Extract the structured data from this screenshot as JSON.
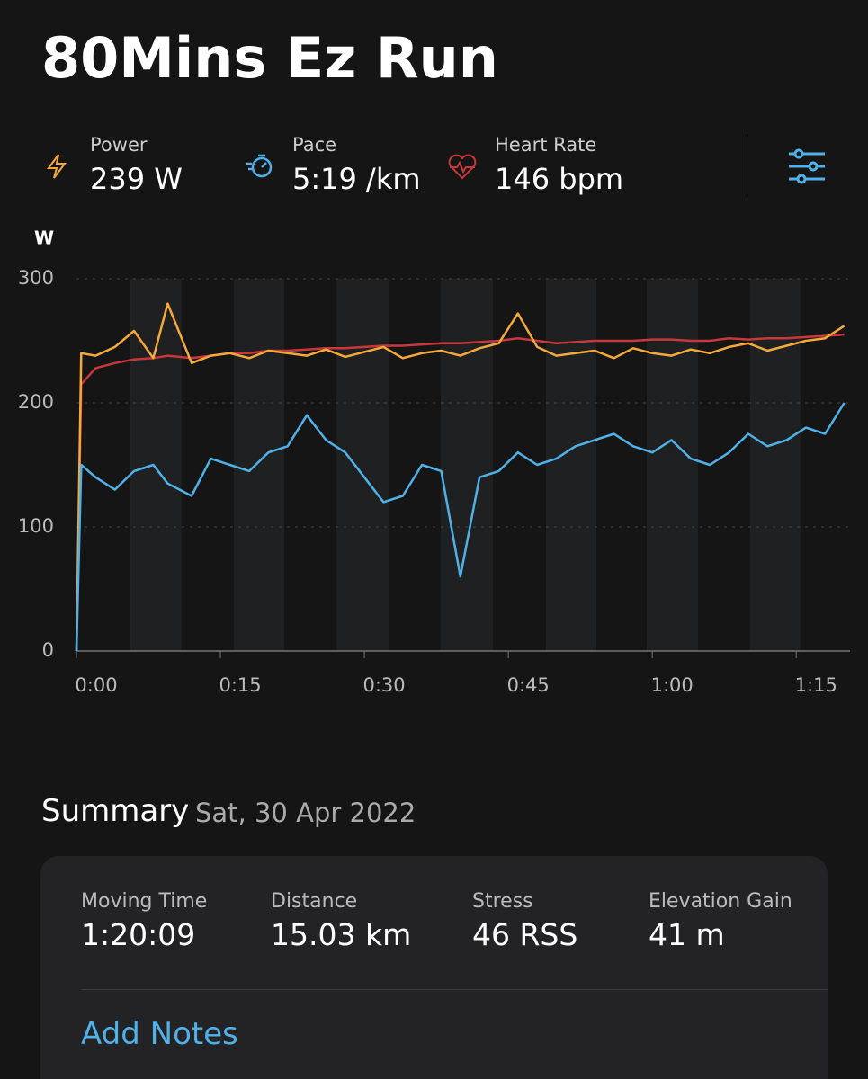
{
  "header": {
    "title": "80Mins Ez Run",
    "metrics": [
      "239 W",
      "5:19 /km",
      "146 bpm"
    ]
  },
  "chart_data": {
    "type": "line",
    "y_label": "W",
    "x": [
      0,
      0.5,
      2,
      4,
      6,
      8,
      9.5,
      12,
      14,
      16,
      18,
      20,
      22,
      24,
      26,
      28,
      30,
      32,
      34,
      36,
      38,
      40,
      42,
      44,
      46,
      48,
      50,
      52,
      54,
      56,
      58,
      60,
      62,
      64,
      66,
      68,
      70,
      72,
      74,
      76,
      78,
      80
    ],
    "series": [
      {
        "name": "Power",
        "color": "#f5a93b",
        "values": [
          0,
          240,
          238,
          245,
          258,
          236,
          280,
          232,
          238,
          240,
          236,
          242,
          240,
          238,
          243,
          237,
          241,
          245,
          236,
          240,
          242,
          238,
          244,
          248,
          272,
          245,
          238,
          240,
          242,
          236,
          244,
          240,
          238,
          243,
          240,
          245,
          248,
          242,
          246,
          250,
          252,
          262
        ]
      },
      {
        "name": "Pace",
        "color": "#4fb1e8",
        "values": [
          0,
          150,
          140,
          130,
          145,
          150,
          135,
          125,
          155,
          150,
          145,
          160,
          165,
          190,
          170,
          160,
          140,
          120,
          125,
          150,
          145,
          60,
          140,
          145,
          160,
          150,
          155,
          165,
          170,
          175,
          165,
          160,
          170,
          155,
          150,
          160,
          175,
          165,
          170,
          180,
          175,
          200
        ]
      },
      {
        "name": "Heart Rate",
        "color": "#c8373a",
        "values": [
          0,
          215,
          228,
          232,
          235,
          236,
          238,
          236,
          238,
          240,
          240,
          242,
          242,
          243,
          244,
          244,
          245,
          246,
          246,
          247,
          248,
          248,
          249,
          250,
          252,
          250,
          248,
          249,
          250,
          250,
          250,
          251,
          251,
          250,
          250,
          252,
          251,
          252,
          252,
          253,
          254,
          255
        ]
      }
    ],
    "xlim": [
      0,
      80.6
    ],
    "ylim": [
      0,
      300
    ],
    "xticks": [
      {
        "value": 0,
        "label": "0:00"
      },
      {
        "value": 15,
        "label": "0:15"
      },
      {
        "value": 30,
        "label": "0:30"
      },
      {
        "value": 45,
        "label": "0:45"
      },
      {
        "value": 60,
        "label": "1:00"
      },
      {
        "value": 75,
        "label": "1:15"
      }
    ],
    "yticks": [
      0,
      100,
      200,
      300
    ],
    "grid": true
  },
  "summary": {
    "title": "Summary",
    "date": "Sat, 30 Apr 2022",
    "stats": [
      {
        "label": "Moving Time",
        "value": "1:20:09"
      },
      {
        "label": "Distance",
        "value": "15.03 km"
      },
      {
        "label": "Stress",
        "value": "46 RSS"
      },
      {
        "label": "Elevation Gain",
        "value": "41 m"
      }
    ],
    "notes": "Add Notes"
  }
}
